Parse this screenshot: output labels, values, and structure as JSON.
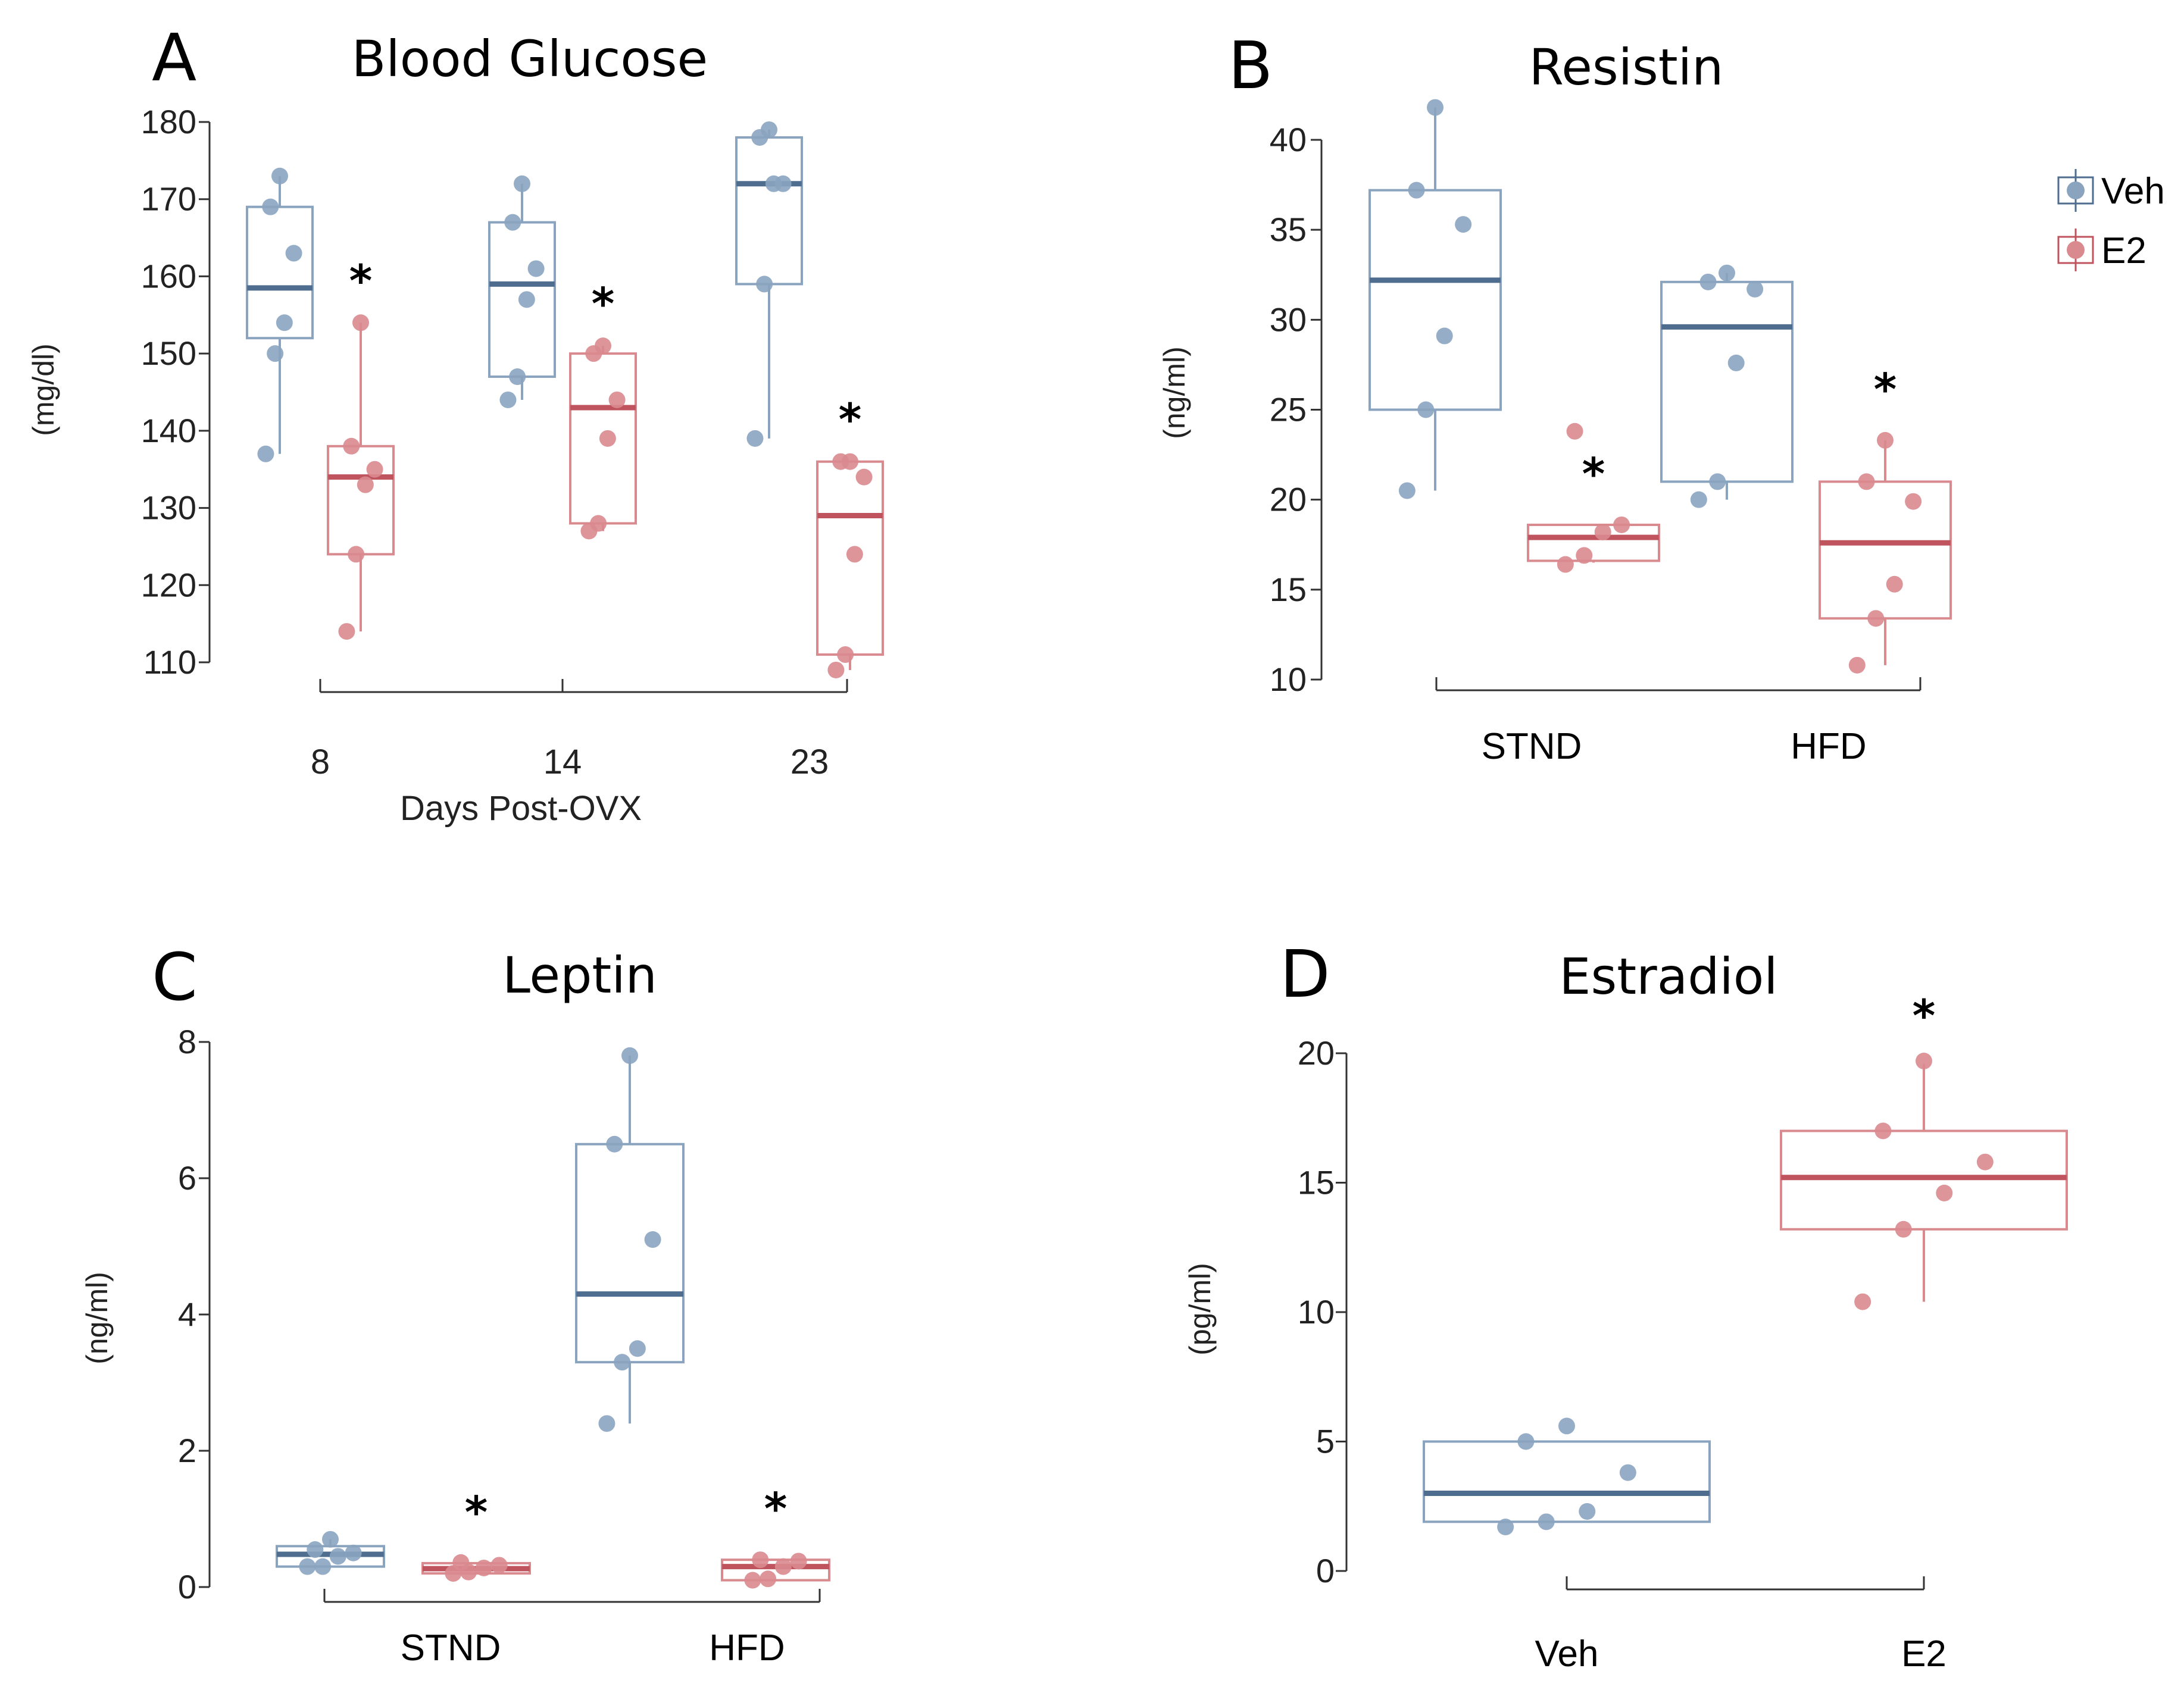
{
  "colors": {
    "veh": "#4f6d8f",
    "veh_light": "#8aa4c0",
    "e2": "#c0545e",
    "e2_light": "#d98a8f",
    "axis": "#333333"
  },
  "legend": {
    "items": [
      {
        "label": "Veh",
        "series": "veh"
      },
      {
        "label": "E2",
        "series": "e2"
      }
    ]
  },
  "chart_data": [
    {
      "panel": "A",
      "type": "box",
      "title": "Blood Glucose",
      "ylabel": "(mg/dl)",
      "xlabel": "Days Post-OVX",
      "ylim": [
        110,
        180
      ],
      "yticks": [
        110,
        120,
        130,
        140,
        150,
        160,
        170,
        180
      ],
      "categories": [
        "8",
        "14",
        "23"
      ],
      "significance_marker": "*",
      "boxes": [
        {
          "category": "8",
          "series": "veh",
          "whisker_low": 137,
          "q1": 152,
          "median": 158.5,
          "q3": 169,
          "whisker_high": 173,
          "points": [
            137,
            150,
            154,
            163,
            169,
            173
          ],
          "sig": false
        },
        {
          "category": "8",
          "series": "e2",
          "whisker_low": 114,
          "q1": 124,
          "median": 134,
          "q3": 138,
          "whisker_high": 154,
          "points": [
            114,
            124,
            133,
            135,
            138,
            154
          ],
          "sig": true
        },
        {
          "category": "14",
          "series": "veh",
          "whisker_low": 144,
          "q1": 147,
          "median": 159,
          "q3": 167,
          "whisker_high": 172,
          "points": [
            144,
            147,
            157,
            161,
            167,
            172
          ],
          "sig": false
        },
        {
          "category": "14",
          "series": "e2",
          "whisker_low": 127,
          "q1": 128,
          "median": 143,
          "q3": 150,
          "whisker_high": 151,
          "points": [
            127,
            128,
            139,
            144,
            150,
            151
          ],
          "sig": true
        },
        {
          "category": "23",
          "series": "veh",
          "whisker_low": 139,
          "q1": 159,
          "median": 172,
          "q3": 178,
          "whisker_high": 179,
          "points": [
            139,
            159,
            172,
            172,
            178,
            179
          ],
          "sig": false
        },
        {
          "category": "23",
          "series": "e2",
          "whisker_low": 109,
          "q1": 111,
          "median": 129,
          "q3": 136,
          "whisker_high": 136,
          "points": [
            109,
            111,
            124,
            134,
            136,
            136
          ],
          "sig": true
        }
      ]
    },
    {
      "panel": "B",
      "type": "box",
      "title": "Resistin",
      "ylabel": "(ng/ml)",
      "xlabel": "",
      "ylim": [
        10,
        40
      ],
      "yticks": [
        10,
        15,
        20,
        25,
        30,
        35,
        40
      ],
      "categories": [
        "STND",
        "HFD"
      ],
      "significance_marker": "*",
      "boxes": [
        {
          "category": "STND",
          "series": "veh",
          "whisker_low": 20.5,
          "q1": 25,
          "median": 32.2,
          "q3": 37.2,
          "whisker_high": 41.8,
          "points": [
            20.5,
            25,
            29.1,
            35.3,
            37.2,
            41.8
          ],
          "sig": false
        },
        {
          "category": "STND",
          "series": "e2",
          "whisker_low": 16.5,
          "q1": 16.6,
          "median": 17.9,
          "q3": 18.6,
          "whisker_high": 18.6,
          "points": [
            16.4,
            16.9,
            18.2,
            18.6,
            23.8
          ],
          "sig": true
        },
        {
          "category": "HFD",
          "series": "veh",
          "whisker_low": 20,
          "q1": 21,
          "median": 29.6,
          "q3": 32.1,
          "whisker_high": 32.6,
          "points": [
            20,
            21,
            27.6,
            31.7,
            32.1,
            32.6
          ],
          "sig": false
        },
        {
          "category": "HFD",
          "series": "e2",
          "whisker_low": 10.8,
          "q1": 13.4,
          "median": 17.6,
          "q3": 21,
          "whisker_high": 23.3,
          "points": [
            10.8,
            13.4,
            15.3,
            19.9,
            21,
            23.3
          ],
          "sig": true
        }
      ]
    },
    {
      "panel": "C",
      "type": "box",
      "title": "Leptin",
      "ylabel": "(ng/ml)",
      "xlabel": "",
      "ylim": [
        0,
        8
      ],
      "yticks": [
        0,
        2,
        4,
        6,
        8
      ],
      "categories": [
        "STND",
        "HFD"
      ],
      "significance_marker": "*",
      "boxes": [
        {
          "category": "STND",
          "series": "veh",
          "whisker_low": 0.3,
          "q1": 0.3,
          "median": 0.48,
          "q3": 0.6,
          "whisker_high": 0.7,
          "points": [
            0.3,
            0.3,
            0.45,
            0.5,
            0.55,
            0.7
          ],
          "sig": false
        },
        {
          "category": "STND",
          "series": "e2",
          "whisker_low": 0.2,
          "q1": 0.2,
          "median": 0.27,
          "q3": 0.35,
          "whisker_high": 0.35,
          "points": [
            0.2,
            0.22,
            0.28,
            0.32,
            0.36
          ],
          "sig": true
        },
        {
          "category": "HFD",
          "series": "veh",
          "whisker_low": 2.4,
          "q1": 3.3,
          "median": 4.3,
          "q3": 6.5,
          "whisker_high": 7.8,
          "points": [
            2.4,
            3.3,
            3.5,
            5.1,
            6.5,
            7.8
          ],
          "sig": false
        },
        {
          "category": "HFD",
          "series": "e2",
          "whisker_low": 0.1,
          "q1": 0.1,
          "median": 0.3,
          "q3": 0.4,
          "whisker_high": 0.4,
          "points": [
            0.1,
            0.12,
            0.3,
            0.38,
            0.4
          ],
          "sig": true
        }
      ]
    },
    {
      "panel": "D",
      "type": "box",
      "title": "Estradiol",
      "ylabel": "(pg/ml)",
      "xlabel": "",
      "ylim": [
        0,
        20
      ],
      "yticks": [
        0,
        5,
        10,
        15,
        20
      ],
      "categories": [
        "Veh",
        "E2"
      ],
      "significance_marker": "*",
      "boxes": [
        {
          "category": "Veh",
          "series": "veh",
          "whisker_low": 1.9,
          "q1": 1.9,
          "median": 3.0,
          "q3": 5.0,
          "whisker_high": 5.0,
          "points": [
            1.7,
            1.9,
            2.3,
            3.8,
            5.0,
            5.6
          ],
          "sig": false
        },
        {
          "category": "E2",
          "series": "e2",
          "whisker_low": 10.4,
          "q1": 13.2,
          "median": 15.2,
          "q3": 17,
          "whisker_high": 19.6,
          "points": [
            10.4,
            13.2,
            14.6,
            15.8,
            17,
            19.7
          ],
          "sig": true
        }
      ]
    }
  ]
}
